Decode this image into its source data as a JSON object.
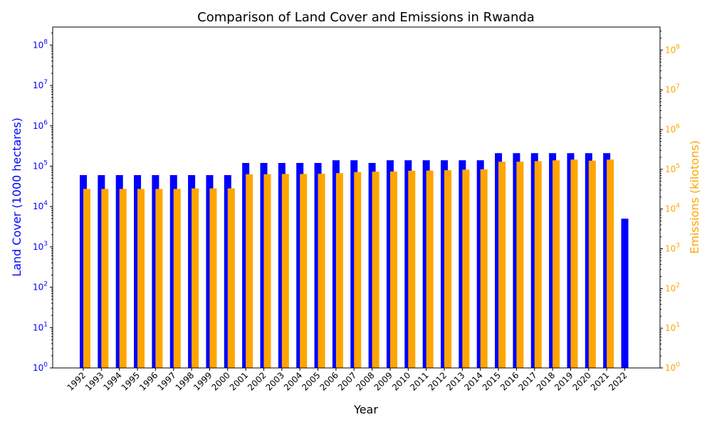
{
  "chart_data": {
    "type": "bar",
    "title": "Comparison of Land Cover and Emissions in Rwanda",
    "xlabel": "Year",
    "ylabel_left": "Land Cover (1000 hectares)",
    "ylabel_right": "Emissions (kilotons)",
    "yscale": "log",
    "ylim_left": [
      1,
      280000000
    ],
    "ylim_right": [
      1,
      380000000
    ],
    "left_tick_labels": [
      "10^0",
      "10^1",
      "10^2",
      "10^3",
      "10^4",
      "10^5",
      "10^6",
      "10^7",
      "10^8"
    ],
    "right_tick_labels": [
      "10^0",
      "10^1",
      "10^2",
      "10^3",
      "10^4",
      "10^5",
      "10^6",
      "10^7",
      "10^8"
    ],
    "categories": [
      "1992",
      "1993",
      "1994",
      "1995",
      "1996",
      "1997",
      "1998",
      "1999",
      "2000",
      "2001",
      "2002",
      "2003",
      "2004",
      "2005",
      "2006",
      "2007",
      "2008",
      "2009",
      "2010",
      "2011",
      "2012",
      "2013",
      "2014",
      "2015",
      "2016",
      "2017",
      "2018",
      "2019",
      "2020",
      "2021",
      "2022"
    ],
    "series": [
      {
        "name": "Land Cover",
        "axis": "left",
        "color": "#0000ff",
        "values": [
          60000,
          60000,
          60000,
          60000,
          60000,
          60000,
          60000,
          60000,
          60000,
          120000,
          120000,
          120000,
          120000,
          120000,
          140000,
          140000,
          120000,
          140000,
          140000,
          140000,
          140000,
          140000,
          140000,
          210000,
          210000,
          210000,
          210000,
          210000,
          210000,
          210000,
          5000
        ]
      },
      {
        "name": "Emissions",
        "axis": "right",
        "color": "#ffa500",
        "values": [
          32000,
          32000,
          32000,
          32000,
          32000,
          32000,
          33000,
          33000,
          33000,
          75000,
          75000,
          76000,
          76000,
          77000,
          80000,
          85000,
          87000,
          88000,
          92000,
          93000,
          95000,
          98000,
          100000,
          155000,
          155000,
          160000,
          168000,
          175000,
          165000,
          175000,
          null
        ]
      }
    ],
    "left_axis_color": "#0000ff",
    "right_axis_color": "#ffa500",
    "grid": false,
    "legend": "none"
  }
}
